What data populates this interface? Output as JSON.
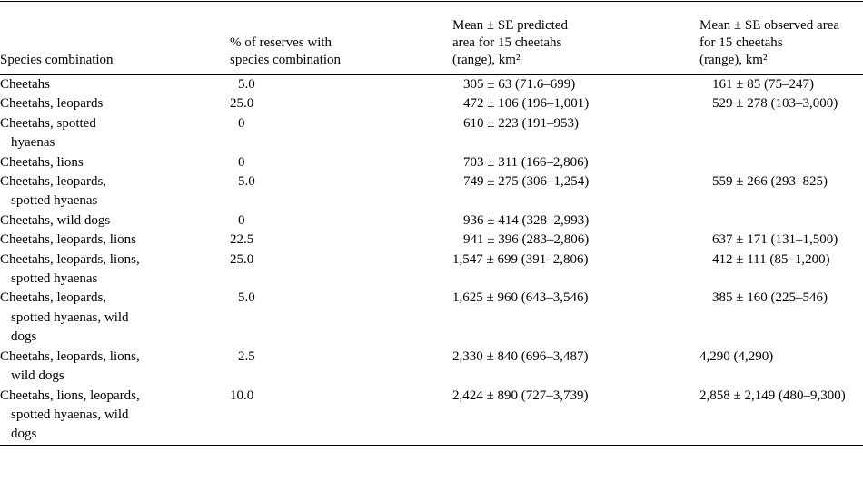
{
  "table": {
    "header": [
      [
        "Species combination"
      ],
      [
        "% of reserves with",
        "species combination"
      ],
      [
        "Mean ± SE predicted",
        "area for 15 cheetahs",
        "(range), km²"
      ],
      [
        "Mean ± SE observed area",
        "for 15 cheetahs",
        "(range), km²"
      ]
    ],
    "rows": [
      [
        "Cheetahs",
        "5.0",
        "305 ± 63 (71.6–699)",
        "161 ± 85 (75–247)"
      ],
      [
        "Cheetahs, leopards",
        "25.0",
        "472 ± 106 (196–1,001)",
        "529 ± 278 (103–3,000)"
      ],
      [
        "Cheetahs, spotted hyaenas",
        "0",
        "610 ± 223 (191–953)",
        null
      ],
      [
        "Cheetahs, lions",
        "0",
        "703 ± 311 (166–2,806)",
        null
      ],
      [
        "Cheetahs, leopards, spotted hyaenas",
        "5.0",
        "749 ± 275 (306–1,254)",
        "559 ± 266 (293–825)"
      ],
      [
        "Cheetahs, wild dogs",
        "0",
        "936 ± 414 (328–2,993)",
        null
      ],
      [
        "Cheetahs, leopards, lions",
        "22.5",
        "941 ± 396 (283–2,806)",
        "637 ± 171 (131–1,500)"
      ],
      [
        "Cheetahs, leopards, lions, spotted hyaenas",
        "25.0",
        "1,547 ± 699 (391–2,806)",
        "412 ± 111 (85–1,200)"
      ],
      [
        "Cheetahs, leopards, spotted hyaenas, wild dogs",
        "5.0",
        "1,625 ± 960 (643–3,546)",
        "385 ± 160 (225–546)"
      ],
      [
        "Cheetahs, leopards, lions, wild dogs",
        "2.5",
        "2,330 ± 840 (696–3,487)",
        "4,290 (4,290)"
      ],
      [
        "Cheetahs, lions, leopards, spotted hyaenas, wild dogs",
        "10.0",
        "2,424 ± 890 (727–3,739)",
        "2,858 ± 2,149 (480–9,300)"
      ]
    ]
  }
}
